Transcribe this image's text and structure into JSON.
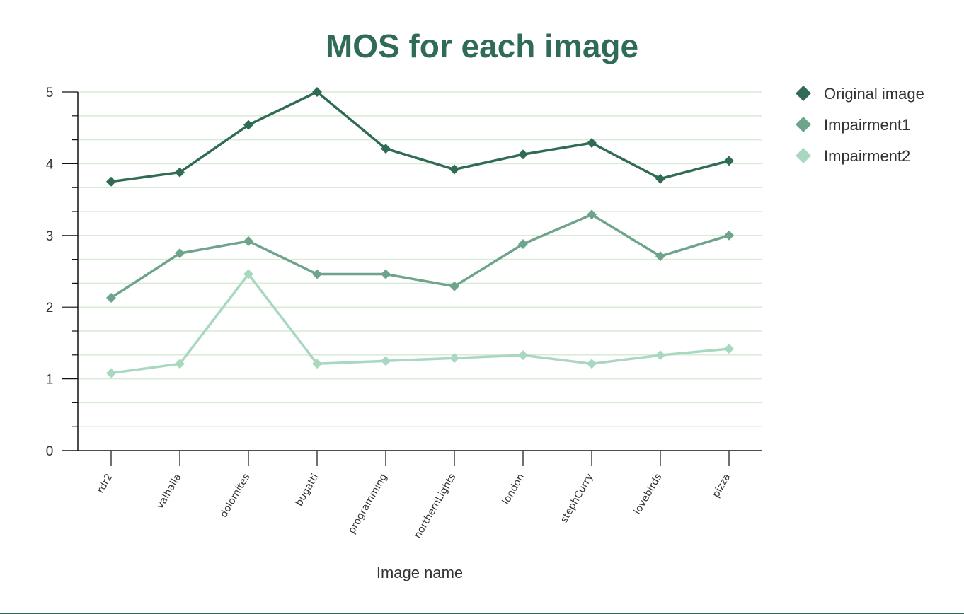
{
  "chart_data": {
    "type": "line",
    "title": "MOS for each image",
    "xlabel": "Image name",
    "ylabel": "",
    "ylim": [
      0,
      5
    ],
    "yticks": [
      "0",
      "1",
      "2",
      "3",
      "4",
      "5"
    ],
    "grid": true,
    "legend_position": "top-right",
    "categories": [
      "rdr2",
      "valhalla",
      "dolomites",
      "bugatti",
      "programming",
      "northernLights",
      "london",
      "stephCurry",
      "lovebirds",
      "pizza"
    ],
    "series": [
      {
        "name": "Original image",
        "color": "#2f6b55",
        "marker": "diamond",
        "values": [
          3.75,
          3.88,
          4.54,
          5.0,
          4.21,
          3.92,
          4.13,
          4.29,
          3.79,
          4.04
        ]
      },
      {
        "name": "Impairment1",
        "color": "#6fa48c",
        "marker": "diamond",
        "values": [
          2.13,
          2.75,
          2.92,
          2.46,
          2.46,
          2.29,
          2.88,
          3.29,
          2.71,
          3.0
        ]
      },
      {
        "name": "Impairment2",
        "color": "#a9d8c0",
        "marker": "diamond",
        "values": [
          1.08,
          1.21,
          2.46,
          1.21,
          1.25,
          1.29,
          1.33,
          1.21,
          1.33,
          1.42
        ]
      }
    ],
    "colors": {
      "title": "#2f6b55",
      "axis": "#111111",
      "grid": "#d9ead6",
      "text": "#333333"
    }
  }
}
